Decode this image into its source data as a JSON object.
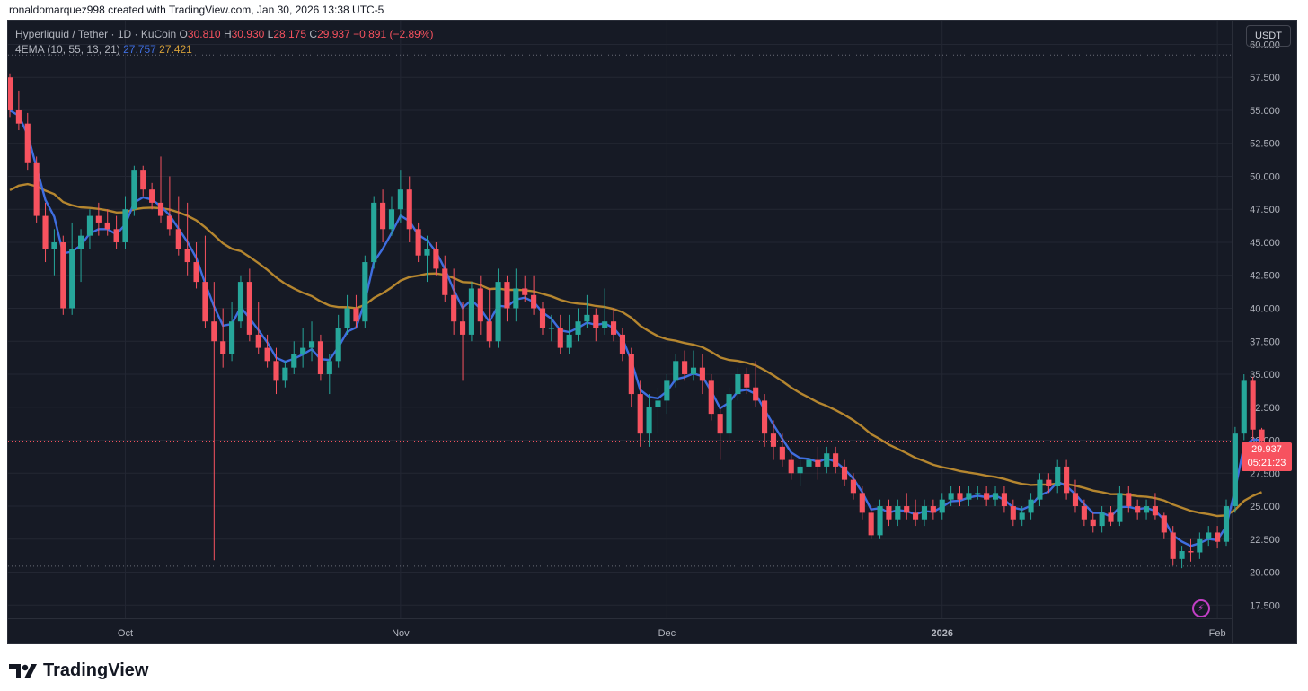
{
  "header": {
    "text": "ronaldomarquez998 created with TradingView.com, Jan 30, 2026 13:38 UTC-5"
  },
  "legend": {
    "symbol": "Hyperliquid / Tether · 1D · KuCoin",
    "o_key": "O",
    "o_val": "30.810",
    "h_key": "H",
    "h_val": "30.930",
    "l_key": "L",
    "l_val": "28.175",
    "c_key": "C",
    "c_val": "29.937",
    "change": "−0.891 (−2.89%)",
    "indicator": "4EMA (10, 55, 13, 21)",
    "ema_fast": "27.757",
    "ema_slow": "27.421"
  },
  "currency": "USDT",
  "price_label": {
    "price": "29.937",
    "countdown": "05:21:23"
  },
  "brand": "TradingView",
  "colors": {
    "background": "#161a25",
    "grid": "#232733",
    "up": "#26a69a",
    "down": "#f7525f",
    "ema_fast": "#3f6ee0",
    "ema_slow": "#b5862f",
    "axis_text": "#b2b5be"
  },
  "icons": {
    "alert": "lightning-bolt-icon",
    "logo": "tradingview-logo-icon"
  },
  "chart_data": {
    "type": "candlestick",
    "y_ticks": [
      "17.500",
      "20.000",
      "22.500",
      "25.000",
      "27.500",
      "30.000",
      "32.500",
      "35.000",
      "37.500",
      "40.000",
      "42.500",
      "45.000",
      "47.500",
      "50.000",
      "52.500",
      "55.000",
      "57.500",
      "60.000"
    ],
    "ylim": [
      16.5,
      61.8
    ],
    "x_labels": [
      {
        "label": "Oct",
        "index": 13
      },
      {
        "label": "Nov",
        "index": 44
      },
      {
        "label": "Dec",
        "index": 74
      },
      {
        "label": "2026",
        "index": 105
      },
      {
        "label": "Feb",
        "index": 136
      }
    ],
    "x_count": 138,
    "reference_lines": [
      59.2,
      29.937,
      20.45
    ],
    "candles": [
      [
        57.5,
        57.8,
        54.5,
        55.0
      ],
      [
        55.0,
        56.5,
        53.5,
        54.0
      ],
      [
        54.0,
        54.8,
        50.5,
        51.0
      ],
      [
        51.0,
        51.5,
        46.5,
        47.0
      ],
      [
        47.0,
        48.0,
        43.5,
        44.5
      ],
      [
        44.5,
        46.0,
        42.5,
        45.0
      ],
      [
        45.0,
        45.5,
        39.5,
        40.0
      ],
      [
        40.0,
        46.5,
        39.5,
        44.5
      ],
      [
        44.5,
        46.0,
        42.0,
        45.5
      ],
      [
        45.5,
        47.5,
        44.5,
        47.0
      ],
      [
        47.0,
        48.0,
        45.5,
        46.5
      ],
      [
        46.5,
        47.5,
        45.5,
        46.0
      ],
      [
        46.0,
        47.0,
        44.5,
        45.0
      ],
      [
        45.0,
        48.5,
        44.5,
        47.5
      ],
      [
        47.5,
        50.8,
        47.0,
        50.5
      ],
      [
        50.5,
        50.8,
        48.5,
        49.0
      ],
      [
        49.0,
        49.5,
        47.5,
        48.0
      ],
      [
        48.0,
        51.5,
        46.5,
        47.0
      ],
      [
        47.0,
        50.0,
        45.5,
        46.0
      ],
      [
        46.0,
        48.5,
        44.0,
        44.5
      ],
      [
        44.5,
        48.0,
        42.5,
        43.5
      ],
      [
        43.5,
        45.0,
        41.5,
        42.0
      ],
      [
        42.0,
        45.5,
        38.5,
        39.0
      ],
      [
        39.0,
        42.0,
        20.9,
        37.5
      ],
      [
        37.5,
        40.0,
        35.5,
        36.5
      ],
      [
        36.5,
        40.5,
        36.0,
        39.0
      ],
      [
        39.0,
        42.5,
        38.5,
        42.0
      ],
      [
        42.0,
        43.0,
        37.5,
        38.0
      ],
      [
        38.0,
        40.5,
        36.5,
        37.0
      ],
      [
        37.0,
        38.0,
        35.5,
        36.0
      ],
      [
        36.0,
        37.0,
        33.5,
        34.5
      ],
      [
        34.5,
        36.0,
        34.0,
        35.5
      ],
      [
        35.5,
        37.5,
        35.0,
        36.5
      ],
      [
        36.5,
        38.5,
        35.5,
        37.0
      ],
      [
        37.0,
        39.0,
        36.0,
        37.5
      ],
      [
        37.5,
        38.0,
        34.5,
        35.0
      ],
      [
        35.0,
        36.5,
        33.5,
        36.0
      ],
      [
        36.0,
        39.5,
        35.5,
        38.5
      ],
      [
        38.5,
        41.0,
        38.0,
        40.0
      ],
      [
        40.0,
        41.0,
        38.5,
        39.0
      ],
      [
        39.0,
        44.0,
        38.5,
        43.5
      ],
      [
        43.5,
        48.5,
        43.0,
        48.0
      ],
      [
        48.0,
        49.0,
        45.0,
        46.0
      ],
      [
        46.0,
        48.5,
        45.5,
        47.5
      ],
      [
        47.5,
        50.5,
        46.5,
        49.0
      ],
      [
        49.0,
        50.0,
        45.0,
        46.0
      ],
      [
        46.0,
        46.5,
        43.5,
        44.0
      ],
      [
        44.0,
        45.5,
        42.0,
        44.5
      ],
      [
        44.5,
        45.0,
        42.5,
        43.0
      ],
      [
        43.0,
        44.0,
        40.5,
        41.0
      ],
      [
        41.0,
        43.0,
        38.0,
        39.0
      ],
      [
        39.0,
        40.5,
        34.5,
        38.0
      ],
      [
        38.0,
        42.0,
        37.5,
        41.5
      ],
      [
        41.5,
        42.5,
        38.0,
        39.0
      ],
      [
        39.0,
        41.5,
        37.0,
        37.5
      ],
      [
        37.5,
        43.0,
        37.0,
        42.0
      ],
      [
        42.0,
        42.5,
        39.0,
        40.0
      ],
      [
        40.0,
        43.0,
        39.0,
        41.5
      ],
      [
        41.5,
        42.5,
        40.5,
        41.0
      ],
      [
        41.0,
        42.5,
        39.5,
        40.0
      ],
      [
        40.0,
        40.5,
        38.0,
        38.5
      ],
      [
        38.5,
        39.5,
        37.5,
        38.5
      ],
      [
        38.5,
        39.5,
        36.5,
        37.0
      ],
      [
        37.0,
        39.5,
        36.5,
        38.0
      ],
      [
        38.0,
        40.0,
        37.5,
        39.0
      ],
      [
        39.0,
        41.0,
        38.5,
        39.5
      ],
      [
        39.5,
        40.0,
        37.5,
        38.5
      ],
      [
        38.5,
        41.5,
        38.0,
        39.0
      ],
      [
        39.0,
        40.0,
        37.5,
        38.0
      ],
      [
        38.0,
        38.5,
        36.0,
        36.5
      ],
      [
        36.5,
        37.0,
        32.5,
        33.5
      ],
      [
        33.5,
        34.5,
        29.5,
        30.5
      ],
      [
        30.5,
        33.5,
        29.5,
        32.5
      ],
      [
        32.5,
        34.0,
        30.5,
        33.0
      ],
      [
        33.0,
        35.0,
        32.0,
        34.5
      ],
      [
        34.5,
        36.5,
        34.0,
        36.0
      ],
      [
        36.0,
        36.8,
        34.5,
        35.0
      ],
      [
        35.0,
        36.8,
        34.5,
        35.5
      ],
      [
        35.5,
        36.5,
        33.5,
        34.5
      ],
      [
        34.5,
        35.0,
        31.5,
        32.0
      ],
      [
        32.0,
        32.5,
        28.5,
        30.5
      ],
      [
        30.5,
        34.0,
        30.0,
        33.5
      ],
      [
        33.5,
        35.5,
        33.0,
        35.0
      ],
      [
        35.0,
        35.5,
        33.5,
        34.0
      ],
      [
        34.0,
        36.0,
        32.5,
        33.0
      ],
      [
        33.0,
        33.5,
        29.5,
        30.5
      ],
      [
        30.5,
        31.5,
        28.5,
        29.5
      ],
      [
        29.5,
        30.5,
        28.0,
        28.5
      ],
      [
        28.5,
        29.0,
        27.0,
        27.5
      ],
      [
        27.5,
        28.5,
        26.5,
        28.0
      ],
      [
        28.0,
        29.5,
        27.5,
        28.5
      ],
      [
        28.5,
        29.5,
        27.0,
        28.0
      ],
      [
        28.0,
        29.5,
        27.5,
        29.0
      ],
      [
        29.0,
        29.5,
        27.5,
        28.0
      ],
      [
        28.0,
        28.5,
        26.5,
        27.0
      ],
      [
        27.0,
        27.5,
        25.5,
        26.0
      ],
      [
        26.0,
        26.5,
        24.0,
        24.5
      ],
      [
        24.5,
        25.0,
        22.5,
        22.8
      ],
      [
        22.8,
        25.5,
        22.5,
        25.0
      ],
      [
        25.0,
        25.5,
        23.5,
        24.0
      ],
      [
        24.0,
        25.5,
        23.5,
        25.0
      ],
      [
        25.0,
        26.0,
        24.0,
        24.5
      ],
      [
        24.5,
        25.5,
        23.5,
        24.0
      ],
      [
        24.0,
        25.5,
        23.5,
        25.0
      ],
      [
        25.0,
        25.5,
        24.0,
        24.5
      ],
      [
        24.5,
        26.0,
        24.0,
        25.5
      ],
      [
        25.5,
        26.5,
        25.0,
        26.0
      ],
      [
        26.0,
        26.5,
        25.0,
        25.5
      ],
      [
        25.5,
        26.5,
        25.0,
        26.0
      ],
      [
        26.0,
        26.5,
        25.5,
        26.0
      ],
      [
        26.0,
        26.5,
        25.0,
        25.5
      ],
      [
        25.5,
        26.5,
        25.0,
        26.0
      ],
      [
        26.0,
        26.5,
        24.5,
        25.0
      ],
      [
        25.0,
        25.5,
        23.5,
        24.0
      ],
      [
        24.0,
        25.0,
        23.5,
        24.5
      ],
      [
        24.5,
        26.0,
        24.0,
        25.5
      ],
      [
        25.5,
        27.5,
        25.0,
        27.0
      ],
      [
        27.0,
        27.5,
        26.0,
        26.5
      ],
      [
        26.5,
        28.5,
        26.0,
        28.0
      ],
      [
        28.0,
        28.5,
        25.5,
        26.0
      ],
      [
        26.0,
        27.0,
        24.5,
        25.0
      ],
      [
        25.0,
        25.5,
        23.5,
        24.0
      ],
      [
        24.0,
        24.5,
        23.0,
        23.5
      ],
      [
        23.5,
        25.0,
        23.0,
        24.5
      ],
      [
        24.5,
        25.0,
        23.5,
        23.8
      ],
      [
        23.8,
        26.5,
        23.5,
        26.0
      ],
      [
        26.0,
        26.5,
        24.5,
        25.0
      ],
      [
        25.0,
        25.5,
        24.0,
        24.5
      ],
      [
        24.5,
        25.5,
        24.0,
        25.0
      ],
      [
        25.0,
        26.0,
        24.0,
        24.3
      ],
      [
        24.3,
        24.5,
        22.5,
        23.0
      ],
      [
        23.0,
        23.5,
        20.5,
        21.0
      ],
      [
        21.0,
        22.0,
        20.3,
        21.6
      ],
      [
        21.6,
        22.5,
        20.8,
        21.5
      ],
      [
        21.5,
        23.0,
        21.0,
        22.5
      ],
      [
        22.5,
        23.5,
        22.0,
        23.0
      ],
      [
        23.0,
        23.5,
        21.8,
        22.3
      ],
      [
        22.3,
        25.5,
        22.0,
        25.0
      ],
      [
        25.0,
        31.0,
        24.5,
        30.5
      ],
      [
        30.5,
        35.0,
        30.0,
        34.5
      ],
      [
        34.5,
        34.8,
        30.0,
        30.8
      ],
      [
        30.81,
        30.93,
        28.175,
        29.937
      ]
    ],
    "series": [
      {
        "name": "EMA 10",
        "color": "#3f6ee0",
        "last": 27.757
      },
      {
        "name": "EMA 55",
        "color": "#b5862f",
        "last": 27.421
      }
    ]
  }
}
